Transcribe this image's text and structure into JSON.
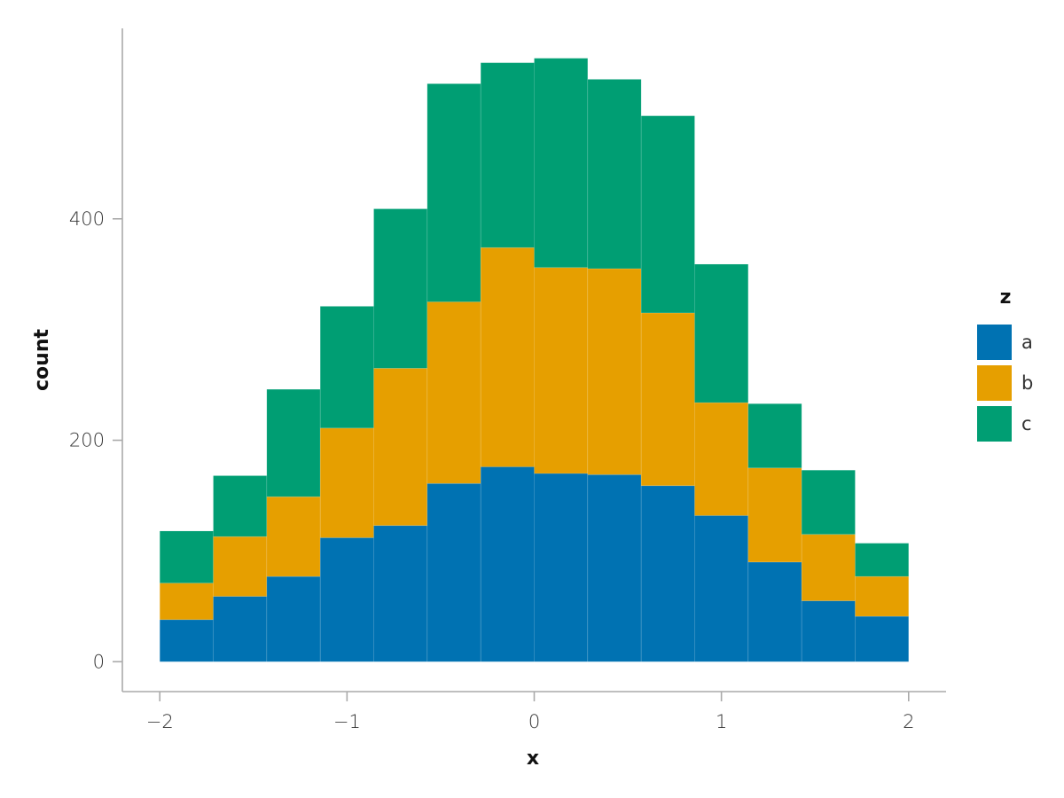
{
  "chart_data": {
    "type": "bar",
    "stacked": true,
    "histogram": true,
    "bin_edges": [
      -2.0,
      -1.7143,
      -1.4286,
      -1.1429,
      -0.8571,
      -0.5714,
      -0.2857,
      0.0,
      0.2857,
      0.5714,
      0.8571,
      1.1429,
      1.4286,
      1.7143,
      2.0
    ],
    "x_tick_values": [
      -2,
      -1,
      0,
      1,
      2
    ],
    "x_tick_labels": [
      "−2",
      "−1",
      "0",
      "1",
      "2"
    ],
    "y_tick_values": [
      0,
      200,
      400
    ],
    "y_tick_labels": [
      "0",
      "200",
      "400"
    ],
    "xlim": [
      -2.2,
      2.2
    ],
    "ylim": [
      -27,
      572
    ],
    "xlabel": "x",
    "ylabel": "count",
    "grid": false,
    "legend": {
      "title": "z",
      "position": "right"
    },
    "series": [
      {
        "name": "a",
        "color": "#0072b2",
        "values": [
          38,
          59,
          77,
          112,
          123,
          161,
          176,
          170,
          169,
          159,
          132,
          90,
          55,
          41
        ]
      },
      {
        "name": "b",
        "color": "#e69f00",
        "values": [
          33,
          54,
          72,
          99,
          142,
          164,
          198,
          186,
          186,
          156,
          102,
          85,
          60,
          36
        ]
      },
      {
        "name": "c",
        "color": "#009e73",
        "values": [
          47,
          55,
          97,
          110,
          144,
          197,
          167,
          189,
          171,
          178,
          125,
          58,
          58,
          30
        ]
      }
    ]
  }
}
